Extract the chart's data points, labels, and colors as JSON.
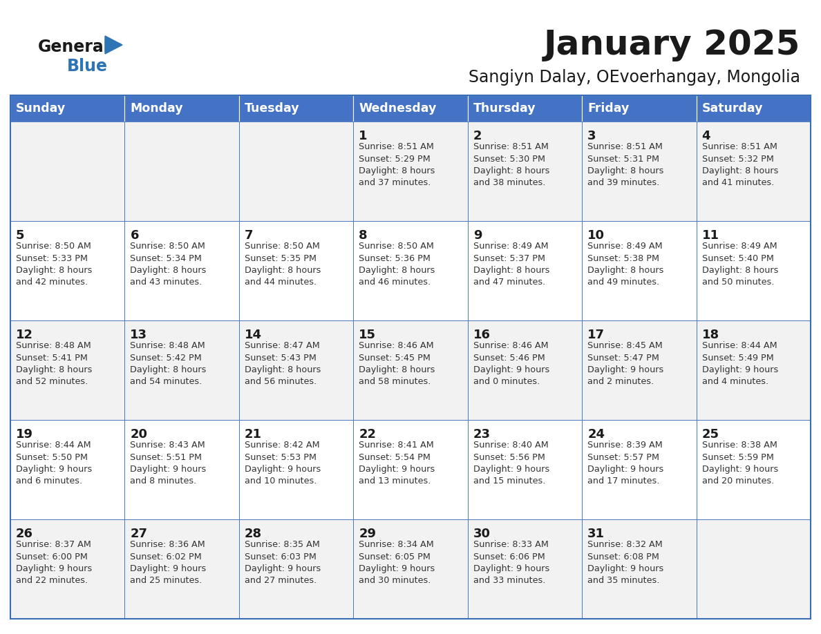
{
  "title": "January 2025",
  "subtitle": "Sangiyn Dalay, OEvoerhangay, Mongolia",
  "header_bg": "#4472C4",
  "header_text_color": "#FFFFFF",
  "cell_bg_odd": "#F2F2F2",
  "cell_bg_even": "#FFFFFF",
  "border_color": "#3A6DB5",
  "day_names": [
    "Sunday",
    "Monday",
    "Tuesday",
    "Wednesday",
    "Thursday",
    "Friday",
    "Saturday"
  ],
  "title_color": "#1a1a1a",
  "subtitle_color": "#1a1a1a",
  "cell_text_color": "#333333",
  "day_num_color": "#1a1a1a",
  "logo_general_color": "#1a1a1a",
  "logo_blue_color": "#2E75B6",
  "calendar": [
    [
      {
        "day": "",
        "info": ""
      },
      {
        "day": "",
        "info": ""
      },
      {
        "day": "",
        "info": ""
      },
      {
        "day": "1",
        "info": "Sunrise: 8:51 AM\nSunset: 5:29 PM\nDaylight: 8 hours\nand 37 minutes."
      },
      {
        "day": "2",
        "info": "Sunrise: 8:51 AM\nSunset: 5:30 PM\nDaylight: 8 hours\nand 38 minutes."
      },
      {
        "day": "3",
        "info": "Sunrise: 8:51 AM\nSunset: 5:31 PM\nDaylight: 8 hours\nand 39 minutes."
      },
      {
        "day": "4",
        "info": "Sunrise: 8:51 AM\nSunset: 5:32 PM\nDaylight: 8 hours\nand 41 minutes."
      }
    ],
    [
      {
        "day": "5",
        "info": "Sunrise: 8:50 AM\nSunset: 5:33 PM\nDaylight: 8 hours\nand 42 minutes."
      },
      {
        "day": "6",
        "info": "Sunrise: 8:50 AM\nSunset: 5:34 PM\nDaylight: 8 hours\nand 43 minutes."
      },
      {
        "day": "7",
        "info": "Sunrise: 8:50 AM\nSunset: 5:35 PM\nDaylight: 8 hours\nand 44 minutes."
      },
      {
        "day": "8",
        "info": "Sunrise: 8:50 AM\nSunset: 5:36 PM\nDaylight: 8 hours\nand 46 minutes."
      },
      {
        "day": "9",
        "info": "Sunrise: 8:49 AM\nSunset: 5:37 PM\nDaylight: 8 hours\nand 47 minutes."
      },
      {
        "day": "10",
        "info": "Sunrise: 8:49 AM\nSunset: 5:38 PM\nDaylight: 8 hours\nand 49 minutes."
      },
      {
        "day": "11",
        "info": "Sunrise: 8:49 AM\nSunset: 5:40 PM\nDaylight: 8 hours\nand 50 minutes."
      }
    ],
    [
      {
        "day": "12",
        "info": "Sunrise: 8:48 AM\nSunset: 5:41 PM\nDaylight: 8 hours\nand 52 minutes."
      },
      {
        "day": "13",
        "info": "Sunrise: 8:48 AM\nSunset: 5:42 PM\nDaylight: 8 hours\nand 54 minutes."
      },
      {
        "day": "14",
        "info": "Sunrise: 8:47 AM\nSunset: 5:43 PM\nDaylight: 8 hours\nand 56 minutes."
      },
      {
        "day": "15",
        "info": "Sunrise: 8:46 AM\nSunset: 5:45 PM\nDaylight: 8 hours\nand 58 minutes."
      },
      {
        "day": "16",
        "info": "Sunrise: 8:46 AM\nSunset: 5:46 PM\nDaylight: 9 hours\nand 0 minutes."
      },
      {
        "day": "17",
        "info": "Sunrise: 8:45 AM\nSunset: 5:47 PM\nDaylight: 9 hours\nand 2 minutes."
      },
      {
        "day": "18",
        "info": "Sunrise: 8:44 AM\nSunset: 5:49 PM\nDaylight: 9 hours\nand 4 minutes."
      }
    ],
    [
      {
        "day": "19",
        "info": "Sunrise: 8:44 AM\nSunset: 5:50 PM\nDaylight: 9 hours\nand 6 minutes."
      },
      {
        "day": "20",
        "info": "Sunrise: 8:43 AM\nSunset: 5:51 PM\nDaylight: 9 hours\nand 8 minutes."
      },
      {
        "day": "21",
        "info": "Sunrise: 8:42 AM\nSunset: 5:53 PM\nDaylight: 9 hours\nand 10 minutes."
      },
      {
        "day": "22",
        "info": "Sunrise: 8:41 AM\nSunset: 5:54 PM\nDaylight: 9 hours\nand 13 minutes."
      },
      {
        "day": "23",
        "info": "Sunrise: 8:40 AM\nSunset: 5:56 PM\nDaylight: 9 hours\nand 15 minutes."
      },
      {
        "day": "24",
        "info": "Sunrise: 8:39 AM\nSunset: 5:57 PM\nDaylight: 9 hours\nand 17 minutes."
      },
      {
        "day": "25",
        "info": "Sunrise: 8:38 AM\nSunset: 5:59 PM\nDaylight: 9 hours\nand 20 minutes."
      }
    ],
    [
      {
        "day": "26",
        "info": "Sunrise: 8:37 AM\nSunset: 6:00 PM\nDaylight: 9 hours\nand 22 minutes."
      },
      {
        "day": "27",
        "info": "Sunrise: 8:36 AM\nSunset: 6:02 PM\nDaylight: 9 hours\nand 25 minutes."
      },
      {
        "day": "28",
        "info": "Sunrise: 8:35 AM\nSunset: 6:03 PM\nDaylight: 9 hours\nand 27 minutes."
      },
      {
        "day": "29",
        "info": "Sunrise: 8:34 AM\nSunset: 6:05 PM\nDaylight: 9 hours\nand 30 minutes."
      },
      {
        "day": "30",
        "info": "Sunrise: 8:33 AM\nSunset: 6:06 PM\nDaylight: 9 hours\nand 33 minutes."
      },
      {
        "day": "31",
        "info": "Sunrise: 8:32 AM\nSunset: 6:08 PM\nDaylight: 9 hours\nand 35 minutes."
      },
      {
        "day": "",
        "info": ""
      }
    ]
  ]
}
